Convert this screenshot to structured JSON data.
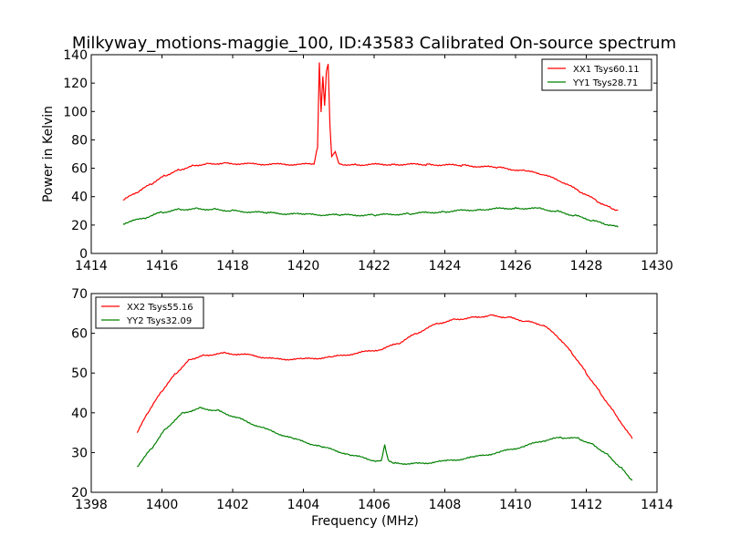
{
  "title": "Milkyway_motions-maggie_100, ID:43583 Calibrated On-source spectrum",
  "colors": {
    "xx": "#ff0000",
    "yy": "#008000",
    "axes": "#000000",
    "background": "#ffffff"
  },
  "chart_data": [
    {
      "type": "line",
      "title": "Milkyway_motions-maggie_100, ID:43583 Calibrated On-source spectrum",
      "xlabel": "",
      "ylabel": "Power in Kelvin",
      "xlim": [
        1414,
        1430
      ],
      "ylim": [
        0,
        140
      ],
      "xticks": [
        "1414",
        "1416",
        "1418",
        "1420",
        "1422",
        "1424",
        "1426",
        "1428",
        "1430"
      ],
      "yticks": [
        "0",
        "20",
        "40",
        "60",
        "80",
        "100",
        "120",
        "140"
      ],
      "grid": false,
      "legend_position": "top-right",
      "series": [
        {
          "name": "XX1 Tsys60.11",
          "color": "#ff0000",
          "x": [
            1414.9,
            1415.3,
            1415.7,
            1416.1,
            1416.5,
            1416.9,
            1417.3,
            1417.8,
            1418.5,
            1419.2,
            1419.9,
            1420.3,
            1420.4,
            1420.45,
            1420.5,
            1420.55,
            1420.6,
            1420.65,
            1420.7,
            1420.75,
            1420.8,
            1420.85,
            1420.9,
            1420.95,
            1421.0,
            1421.1,
            1421.5,
            1422.5,
            1423.5,
            1424.5,
            1425.5,
            1426.3,
            1426.8,
            1427.3,
            1427.8,
            1428.3,
            1428.7,
            1428.9
          ],
          "y": [
            37.5,
            43,
            49,
            55,
            59,
            62,
            63.3,
            63.5,
            63,
            62.8,
            62.7,
            63,
            75,
            135,
            100,
            125,
            104,
            128,
            133,
            90,
            68,
            70,
            72,
            68,
            64,
            62.8,
            62.5,
            62.8,
            62.7,
            62,
            60.5,
            58,
            55.5,
            50.5,
            44,
            37,
            32,
            30.5
          ]
        },
        {
          "name": "YY1 Tsys28.71",
          "color": "#008000",
          "x": [
            1414.9,
            1415.5,
            1416,
            1416.5,
            1417,
            1417.5,
            1418,
            1419,
            1420,
            1421,
            1422,
            1423,
            1424,
            1425,
            1426,
            1426.7,
            1427.2,
            1427.7,
            1428.2,
            1428.6,
            1428.9
          ],
          "y": [
            21,
            25,
            29,
            31,
            31.5,
            31,
            30,
            28.5,
            27.5,
            27,
            27,
            28,
            29.5,
            31,
            32,
            31.5,
            29.5,
            26.5,
            23,
            20,
            18.5
          ]
        }
      ]
    },
    {
      "type": "line",
      "title": "",
      "xlabel": "Frequency (MHz)",
      "ylabel": "",
      "xlim": [
        1398,
        1414
      ],
      "ylim": [
        20,
        70
      ],
      "xticks": [
        "1398",
        "1400",
        "1402",
        "1404",
        "1406",
        "1408",
        "1410",
        "1412",
        "1414"
      ],
      "yticks": [
        "20",
        "30",
        "40",
        "50",
        "60",
        "70"
      ],
      "grid": false,
      "legend_position": "top-left",
      "series": [
        {
          "name": "XX2 Tsys55.16",
          "color": "#ff0000",
          "x": [
            1399.3,
            1399.6,
            1400,
            1400.4,
            1400.8,
            1401.2,
            1401.8,
            1402.5,
            1403.2,
            1404,
            1404.8,
            1405.5,
            1406.2,
            1406.7,
            1407.2,
            1407.8,
            1408.3,
            1408.8,
            1409.3,
            1409.8,
            1410.3,
            1410.8,
            1411.2,
            1411.6,
            1412,
            1412.4,
            1412.8,
            1413.3
          ],
          "y": [
            35,
            40,
            45.5,
            50,
            53.5,
            54.5,
            55,
            54.5,
            53.5,
            53.5,
            54,
            55,
            56,
            57.5,
            60,
            62.5,
            63.5,
            64,
            64.5,
            64,
            63,
            62,
            59,
            55,
            50,
            45,
            40,
            33.5
          ]
        },
        {
          "name": "YY2 Tsys32.09",
          "color": "#008000",
          "x": [
            1399.3,
            1399.7,
            1400.1,
            1400.6,
            1401.1,
            1401.6,
            1402.2,
            1402.9,
            1403.7,
            1404.5,
            1405.3,
            1406.0,
            1406.2,
            1406.3,
            1406.4,
            1406.6,
            1407.2,
            1408.0,
            1408.8,
            1409.5,
            1410.2,
            1410.8,
            1411.3,
            1411.8,
            1412.2,
            1412.6,
            1413.0,
            1413.3
          ],
          "y": [
            26.5,
            31,
            36,
            40,
            41.2,
            40.5,
            38.5,
            36,
            33.5,
            31.5,
            29.5,
            28,
            28,
            32,
            28,
            27.3,
            27.2,
            27.8,
            28.8,
            30,
            31.5,
            33,
            33.8,
            33.5,
            32,
            29.5,
            26,
            23
          ]
        }
      ]
    }
  ]
}
